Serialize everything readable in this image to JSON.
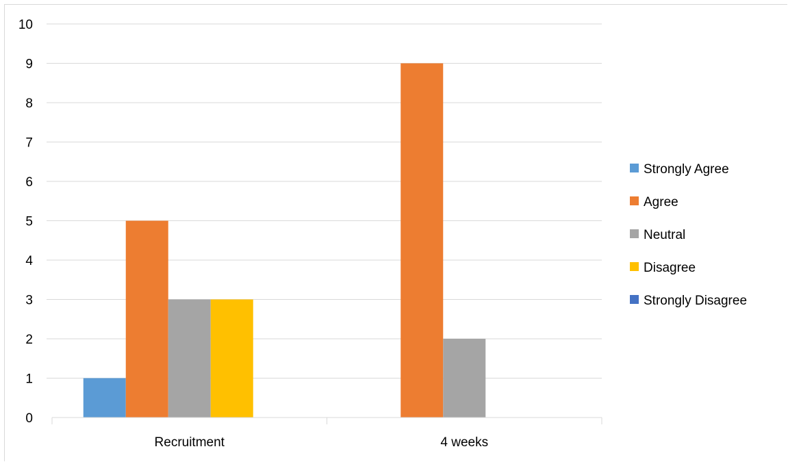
{
  "chart_data": {
    "type": "bar",
    "categories": [
      "Recruitment",
      "4 weeks"
    ],
    "series": [
      {
        "name": "Strongly Agree",
        "color": "#5b9bd5",
        "values": [
          1,
          0
        ]
      },
      {
        "name": "Agree",
        "color": "#ed7d31",
        "values": [
          5,
          9
        ]
      },
      {
        "name": "Neutral",
        "color": "#a5a5a5",
        "values": [
          3,
          2
        ]
      },
      {
        "name": "Disagree",
        "color": "#ffc000",
        "values": [
          3,
          0
        ]
      },
      {
        "name": "Strongly Disagree",
        "color": "#4472c4",
        "values": [
          0,
          0
        ]
      }
    ],
    "ylim": [
      0,
      10
    ],
    "yticks": [
      "0",
      "1",
      "2",
      "3",
      "4",
      "5",
      "6",
      "7",
      "8",
      "9",
      "10"
    ],
    "grid": true,
    "legend_position": "right",
    "title": "",
    "xlabel": "",
    "ylabel": ""
  }
}
